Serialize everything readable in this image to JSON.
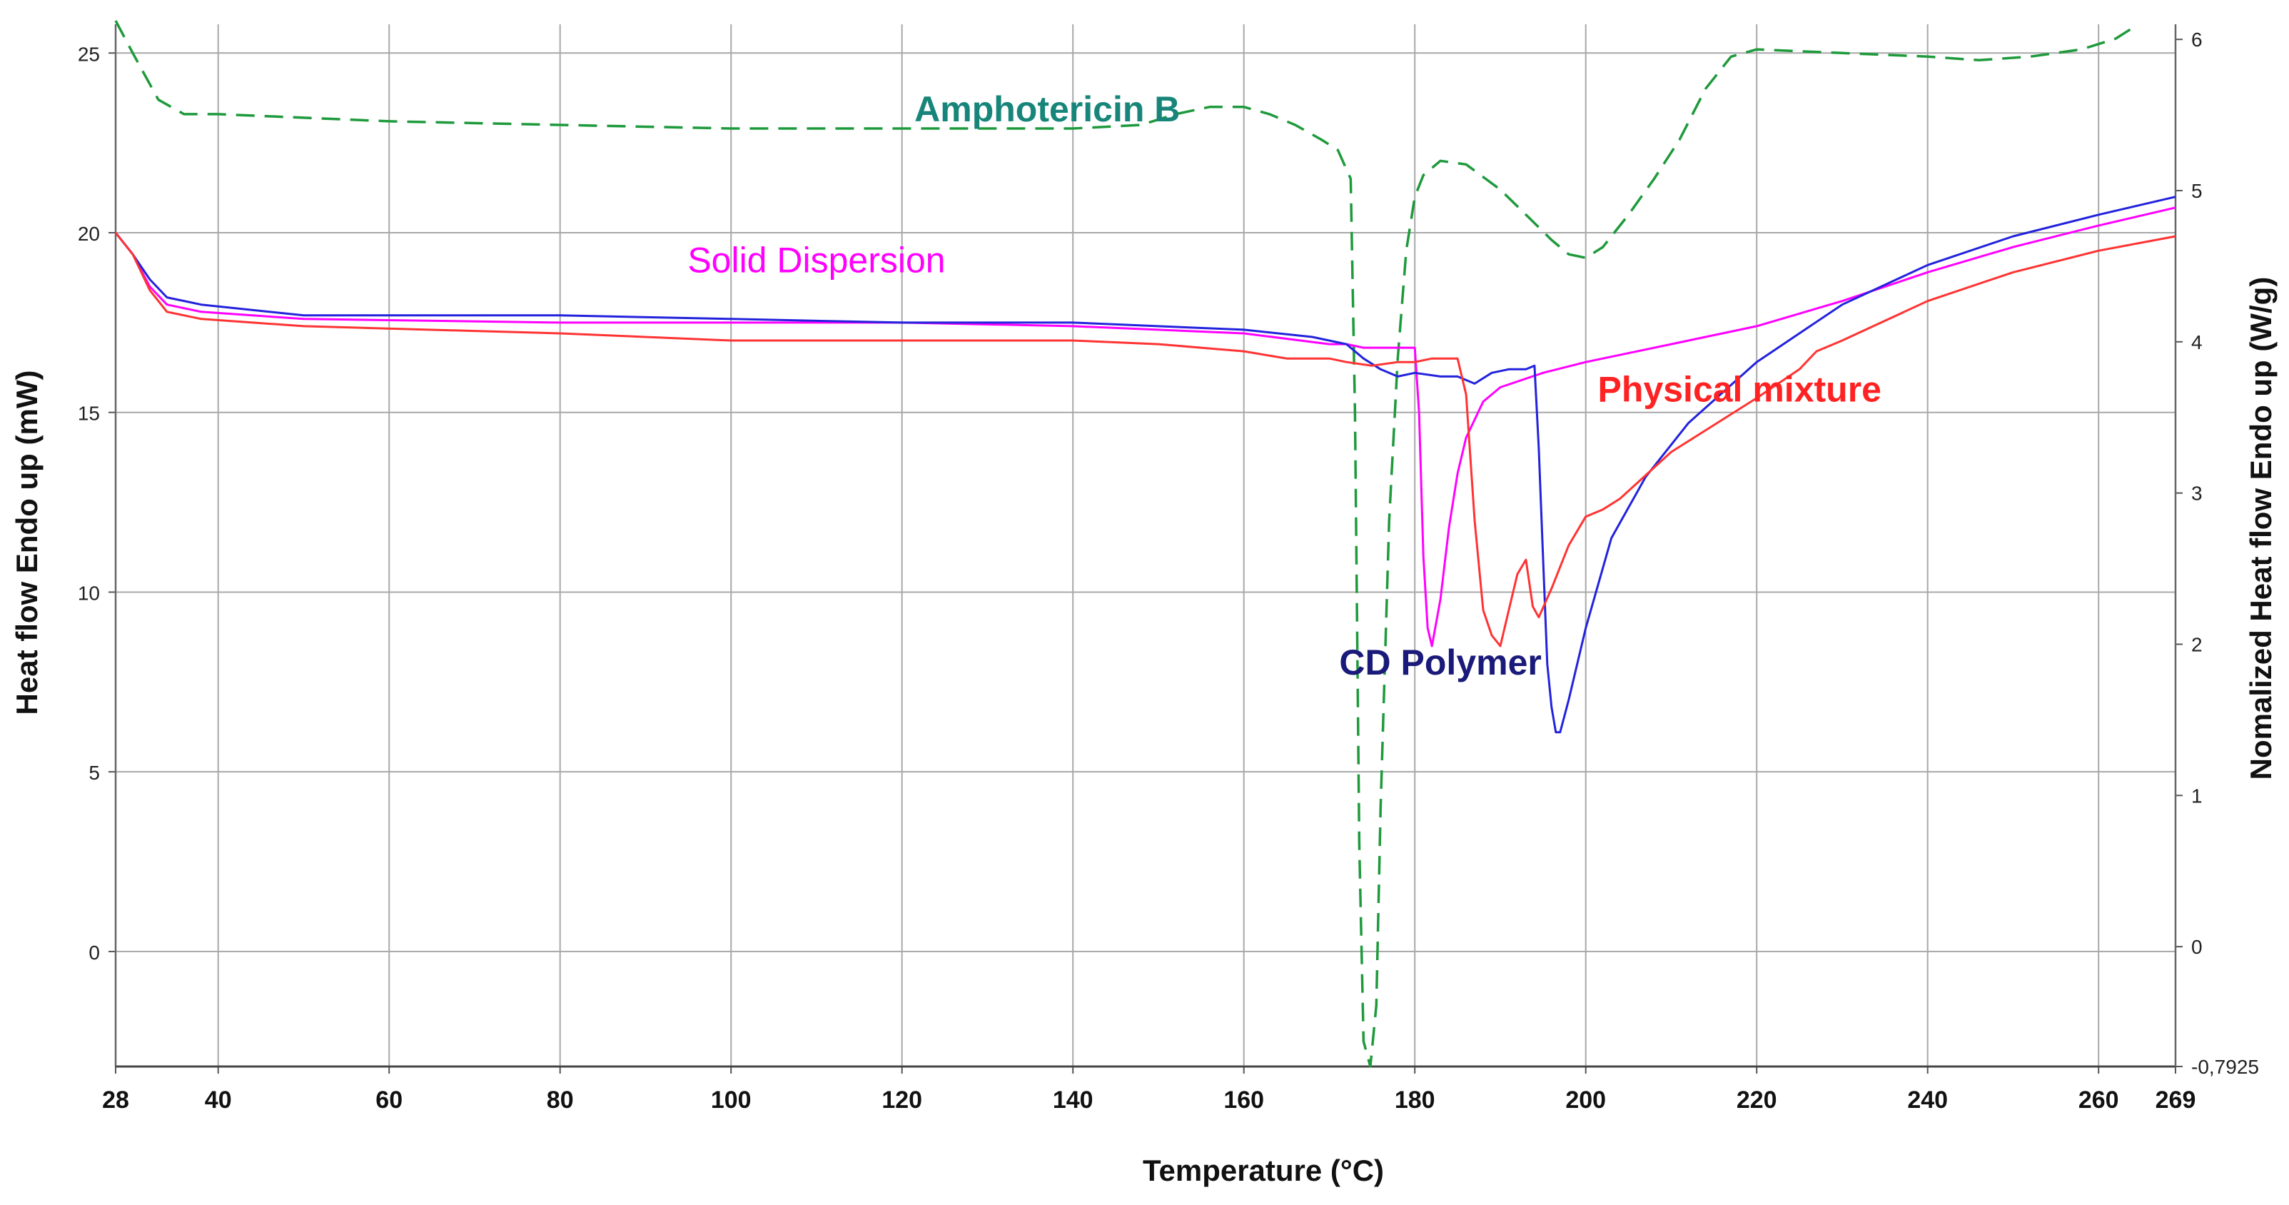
{
  "chart_data": {
    "type": "line",
    "title": "",
    "xlabel": "Temperature (°C)",
    "ylabel": "Heat flow Endo up (mW)",
    "y2label": "Nomalized Heat flow Endo up (W/g)",
    "xlim": [
      28,
      269
    ],
    "ylim": [
      -3.2,
      25.8
    ],
    "y2lim": [
      -0.7925,
      6.1
    ],
    "grid": true,
    "x_ticks": [
      28,
      40,
      60,
      80,
      100,
      120,
      140,
      160,
      180,
      200,
      220,
      240,
      260,
      269
    ],
    "x_tick_labels": [
      "28",
      "40",
      "60",
      "80",
      "100",
      "120",
      "140",
      "160",
      "180",
      "200",
      "220",
      "240",
      "260",
      "269"
    ],
    "y_ticks": [
      0,
      5,
      10,
      15,
      20,
      25
    ],
    "y_tick_labels": [
      "0",
      "5",
      "10",
      "15",
      "20",
      "25"
    ],
    "y2_ticks": [
      0,
      1,
      2,
      3,
      4,
      5,
      6,
      -0.7925
    ],
    "y2_tick_labels": [
      "0",
      "1",
      "2",
      "3",
      "4",
      "5",
      "6",
      "-0,7925"
    ],
    "series": [
      {
        "name": "Amphotericin B",
        "label": "Amphotericin B",
        "color": "#1e9a3c",
        "label_color": "#17857a",
        "dashed": true,
        "label_x": 137,
        "label_y": 23.1,
        "x": [
          28,
          30,
          33,
          36,
          40,
          60,
          80,
          100,
          120,
          140,
          148,
          152,
          156,
          160,
          163,
          166,
          169,
          171,
          172.5,
          173,
          173.5,
          174,
          174.8,
          175.5,
          176,
          177,
          178,
          179,
          180,
          181,
          183,
          186,
          190,
          193,
          196,
          198,
          200,
          202,
          205,
          208,
          211,
          214,
          217,
          220,
          230,
          240,
          246,
          252,
          258,
          262,
          264
        ],
        "y": [
          25.9,
          25.0,
          23.7,
          23.3,
          23.3,
          23.1,
          23.0,
          22.9,
          22.9,
          22.9,
          23.0,
          23.3,
          23.5,
          23.5,
          23.3,
          23.0,
          22.6,
          22.3,
          21.5,
          15.0,
          3.0,
          -2.5,
          -3.2,
          -1.5,
          4.0,
          12.0,
          16.5,
          19.5,
          21.0,
          21.6,
          22.0,
          21.9,
          21.2,
          20.5,
          19.8,
          19.4,
          19.3,
          19.6,
          20.5,
          21.5,
          22.6,
          24.0,
          24.9,
          25.1,
          25.0,
          24.9,
          24.8,
          24.9,
          25.1,
          25.4,
          25.7
        ]
      },
      {
        "name": "Solid Dispersion",
        "label": "Solid Dispersion",
        "color": "#ff00ff",
        "label_color": "#ff00ff",
        "dashed": false,
        "label_x": 110,
        "label_y": 18.9,
        "x": [
          28,
          30,
          32,
          34,
          38,
          50,
          80,
          100,
          120,
          140,
          160,
          170,
          172,
          174,
          176,
          178,
          180,
          180.5,
          181,
          181.5,
          182,
          183,
          184,
          185,
          186,
          188,
          190,
          195,
          200,
          210,
          220,
          230,
          240,
          250,
          260,
          269
        ],
        "y": [
          20.0,
          19.4,
          18.5,
          18.0,
          17.8,
          17.6,
          17.5,
          17.5,
          17.5,
          17.4,
          17.2,
          16.9,
          16.9,
          16.8,
          16.8,
          16.8,
          16.8,
          15.0,
          11.0,
          9.0,
          8.5,
          9.8,
          11.8,
          13.3,
          14.3,
          15.3,
          15.7,
          16.1,
          16.4,
          16.9,
          17.4,
          18.1,
          18.9,
          19.6,
          20.2,
          20.7
        ]
      },
      {
        "name": "CD Polymer",
        "label": "CD Polymer",
        "color": "#2222dd",
        "label_color": "#1a1a7a",
        "dashed": false,
        "label_x": 183,
        "label_y": 7.7,
        "x": [
          28,
          30,
          32,
          34,
          38,
          50,
          80,
          100,
          120,
          140,
          160,
          168,
          172,
          174,
          176,
          178,
          180,
          183,
          185,
          187,
          189,
          191,
          193,
          194,
          194.5,
          195,
          195.5,
          196,
          196.5,
          197,
          198,
          200,
          203,
          207,
          212,
          220,
          230,
          240,
          250,
          260,
          269
        ],
        "y": [
          20.0,
          19.4,
          18.7,
          18.2,
          18.0,
          17.7,
          17.7,
          17.6,
          17.5,
          17.5,
          17.3,
          17.1,
          16.9,
          16.5,
          16.2,
          16.0,
          16.1,
          16.0,
          16.0,
          15.8,
          16.1,
          16.2,
          16.2,
          16.3,
          14.0,
          11.0,
          8.0,
          6.8,
          6.1,
          6.1,
          7.0,
          9.0,
          11.5,
          13.2,
          14.7,
          16.4,
          18.0,
          19.1,
          19.9,
          20.5,
          21.0
        ]
      },
      {
        "name": "Physical mixture",
        "label": "Physical mixture",
        "color": "#ff3333",
        "label_color": "#ff2222",
        "dashed": false,
        "label_x": 218,
        "label_y": 15.3,
        "x": [
          28,
          30,
          32,
          34,
          38,
          50,
          80,
          100,
          120,
          140,
          150,
          155,
          160,
          165,
          170,
          172,
          175,
          178,
          180,
          182,
          184,
          185,
          186,
          187,
          188,
          189,
          190,
          191,
          192,
          193,
          193.8,
          194.5,
          196,
          198,
          200,
          202,
          204,
          210,
          220,
          225,
          227,
          230,
          240,
          250,
          260,
          269
        ],
        "y": [
          20.0,
          19.4,
          18.4,
          17.8,
          17.6,
          17.4,
          17.2,
          17.0,
          17.0,
          17.0,
          16.9,
          16.8,
          16.7,
          16.5,
          16.5,
          16.4,
          16.3,
          16.4,
          16.4,
          16.5,
          16.5,
          16.5,
          15.5,
          12.0,
          9.5,
          8.8,
          8.5,
          9.5,
          10.5,
          10.9,
          9.6,
          9.3,
          10.1,
          11.3,
          12.1,
          12.3,
          12.6,
          13.9,
          15.4,
          16.2,
          16.7,
          17.0,
          18.1,
          18.9,
          19.5,
          19.9
        ]
      }
    ]
  }
}
